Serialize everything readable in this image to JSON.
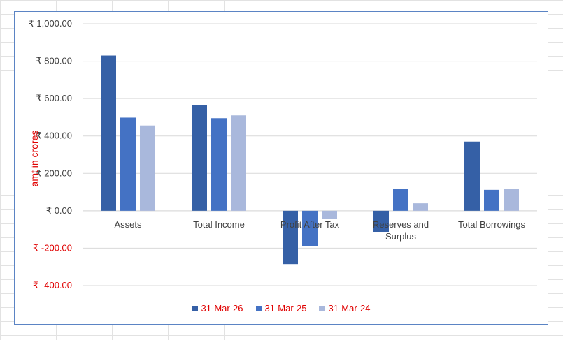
{
  "chart_data": {
    "type": "bar",
    "title": "",
    "ylabel": "amt in crores",
    "xlabel": "",
    "ylim": [
      -400,
      1000
    ],
    "yticks": [
      1000,
      800,
      600,
      400,
      200,
      0,
      -200,
      -400
    ],
    "ytick_labels": [
      "₹ 1,000.00",
      "₹ 800.00",
      "₹ 600.00",
      "₹ 400.00",
      "₹ 200.00",
      "₹ 0.00",
      "₹ -200.00",
      "₹ -400.00"
    ],
    "grid": true,
    "legend_position": "bottom",
    "categories": [
      "Assets",
      "Total Income",
      "Profit After Tax",
      "Reserves and Surplus",
      "Total Borrowings"
    ],
    "series": [
      {
        "name": "31-Mar-26",
        "color": "#3560a6",
        "values": [
          830,
          565,
          -285,
          -115,
          370
        ]
      },
      {
        "name": "31-Mar-25",
        "color": "#4472c4",
        "values": [
          498,
          495,
          -190,
          118,
          112
        ]
      },
      {
        "name": "31-Mar-24",
        "color": "#a9b8dc",
        "values": [
          456,
          510,
          -45,
          40,
          118
        ]
      }
    ],
    "colors": {
      "negative_label": "#e00000",
      "positive_label": "#404040",
      "ylabel": "#e00000",
      "legend_text": "#e00000"
    }
  }
}
